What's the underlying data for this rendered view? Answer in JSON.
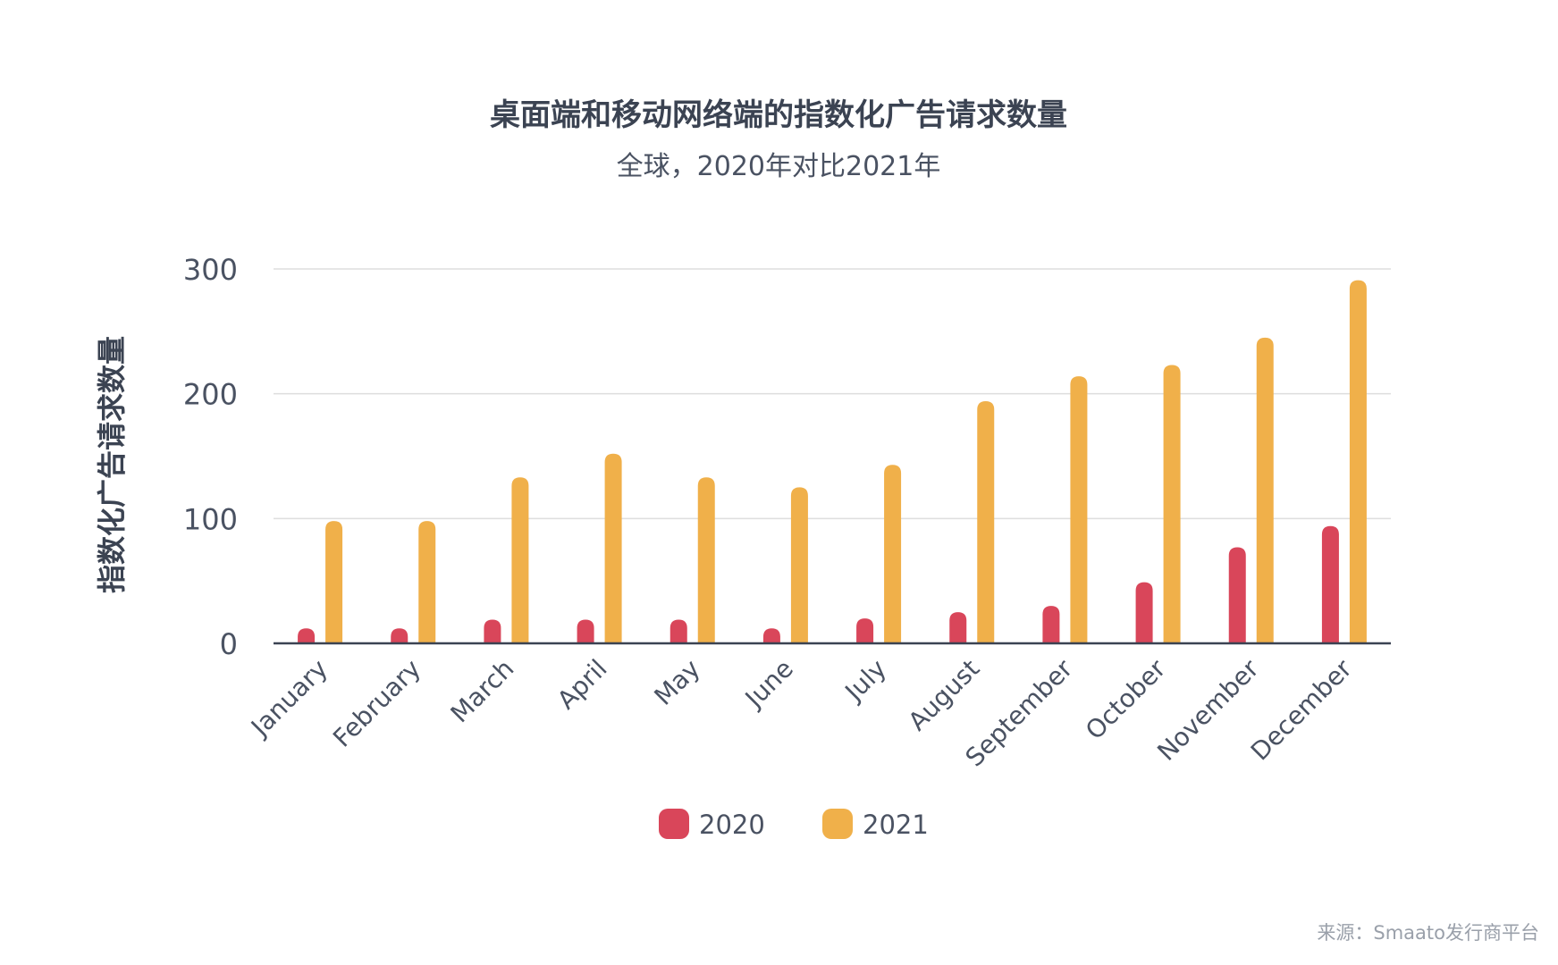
{
  "chart_data": {
    "type": "bar",
    "title": "桌面端和移动网络端的指数化广告请求数量",
    "subtitle": "全球，2020年对比2021年",
    "ylabel": "指数化广告请求数量",
    "xlabel": "",
    "ylim": [
      0,
      300
    ],
    "yticks": [
      0,
      100,
      200,
      300
    ],
    "categories": [
      "January",
      "February",
      "March",
      "April",
      "May",
      "June",
      "July",
      "August",
      "September",
      "October",
      "November",
      "December"
    ],
    "series": [
      {
        "name": "2020",
        "color": "#d9465a",
        "values": [
          12,
          12,
          19,
          19,
          19,
          12,
          20,
          25,
          30,
          49,
          77,
          94
        ]
      },
      {
        "name": "2021",
        "color": "#f0b04a",
        "values": [
          98,
          98,
          133,
          152,
          133,
          125,
          143,
          194,
          214,
          223,
          245,
          291
        ]
      }
    ],
    "grid": true,
    "legend_position": "bottom",
    "source": "来源：Smaato发行商平台"
  }
}
